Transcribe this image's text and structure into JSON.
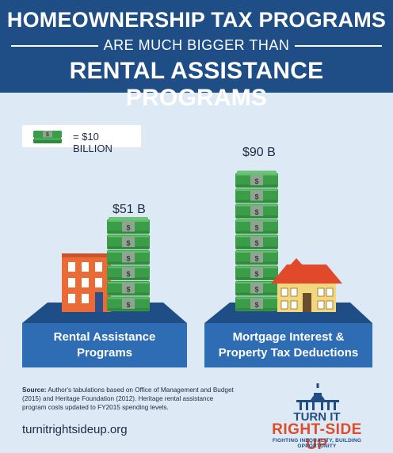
{
  "header": {
    "line1": "HOMEOWNERSHIP TAX PROGRAMS",
    "line2": "ARE MUCH BIGGER THAN",
    "line3": "RENTAL ASSISTANCE PROGRAMS"
  },
  "legend": {
    "text": "= $10 BILLION",
    "unit_value": 10,
    "icon": "money-stack-icon"
  },
  "chart_data": {
    "type": "bar",
    "title": "",
    "categories": [
      "Rental Assistance Programs",
      "Mortgage Interest & Property Tax Deductions"
    ],
    "values": [
      51,
      90
    ],
    "unit": "billion USD",
    "value_labels": [
      "$51 B",
      "$90 B"
    ],
    "category_label_lines": [
      [
        "Rental Assistance",
        "Programs"
      ],
      [
        "Mortgage Interest &",
        "Property Tax Deductions"
      ]
    ],
    "xlabel": "",
    "ylabel": "",
    "grid": false,
    "legend": "top-left"
  },
  "colors": {
    "header_bg": "#1f4e86",
    "page_bg": "#dde9f5",
    "label_bg": "#2e6db4",
    "platform": "#1f4e86",
    "money_green": "#3b9d48",
    "apartment": "#ea6b35",
    "house_wall": "#f3d77c",
    "house_roof": "#e04a2a",
    "brand_red": "#e04a2a"
  },
  "source": {
    "label": "Source:",
    "text": "Author's tabulations based on Office of Management and Budget (2015) and Heritage Foundation (2012). Heritage rental assistance program costs updated to FY2015 spending levels."
  },
  "footer": {
    "site": "turnitrightsideup.org",
    "brand_line1": "TURN IT",
    "brand_line2": "RIGHT-SIDE UP",
    "brand_tagline": "FIGHTING INEQUALITY, BUILDING OPPORTUNITY",
    "brand_icon": "capitol-icon"
  }
}
